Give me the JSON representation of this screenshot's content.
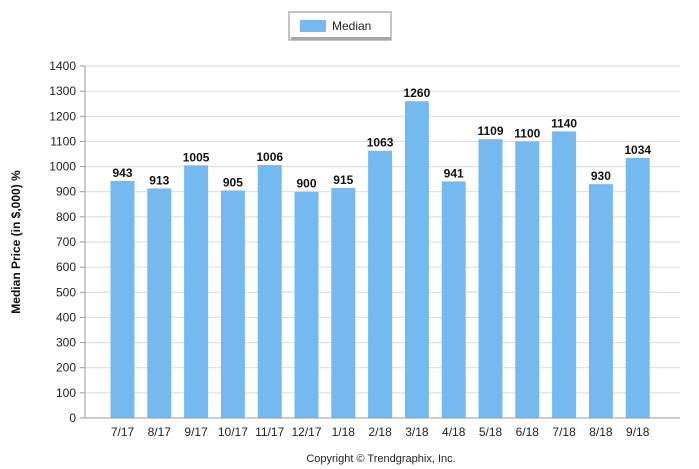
{
  "chart_data": {
    "type": "bar",
    "categories": [
      "7/17",
      "8/17",
      "9/17",
      "10/17",
      "11/17",
      "12/17",
      "1/18",
      "2/18",
      "3/18",
      "4/18",
      "5/18",
      "6/18",
      "7/18",
      "8/18",
      "9/18"
    ],
    "series": [
      {
        "name": "Median",
        "values": [
          943,
          913,
          1005,
          905,
          1006,
          900,
          915,
          1063,
          1260,
          941,
          1109,
          1100,
          1140,
          930,
          1034
        ],
        "color": "#74b9f0"
      }
    ],
    "title": "",
    "xlabel": "",
    "ylabel": "Median Price (in $,000) %",
    "ylim": [
      0,
      1400
    ],
    "yticks": [
      0,
      100,
      200,
      300,
      400,
      500,
      600,
      700,
      800,
      900,
      1000,
      1100,
      1200,
      1300,
      1400
    ],
    "grid": true,
    "legend_position": "top-center",
    "copyright": "Copyright © Trendgraphix, Inc."
  }
}
